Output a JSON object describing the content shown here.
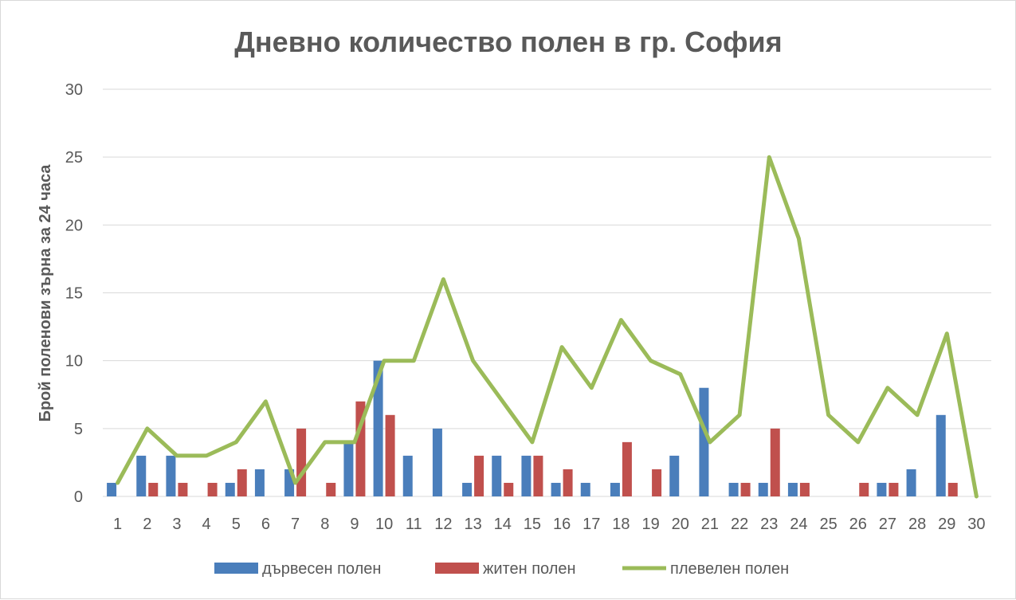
{
  "chart_data": {
    "type": "bar",
    "title": "Дневно количество полен в гр. София",
    "xlabel": "",
    "ylabel": "Брой поленови зърна за 24 часа",
    "ylim": [
      0,
      30
    ],
    "yticks": [
      "0",
      "5",
      "10",
      "15",
      "20",
      "25",
      "30"
    ],
    "grid": true,
    "legend_position": "bottom",
    "categories": [
      "1",
      "2",
      "3",
      "4",
      "5",
      "6",
      "7",
      "8",
      "9",
      "10",
      "11",
      "12",
      "13",
      "14",
      "15",
      "16",
      "17",
      "18",
      "19",
      "20",
      "21",
      "22",
      "23",
      "24",
      "25",
      "26",
      "27",
      "28",
      "29",
      "30"
    ],
    "series": [
      {
        "name": "дървесен полен",
        "type": "bar",
        "color": "#4a7ebb",
        "values": [
          1,
          3,
          3,
          0,
          1,
          2,
          2,
          0,
          4,
          10,
          3,
          5,
          1,
          3,
          3,
          1,
          1,
          1,
          0,
          3,
          8,
          1,
          1,
          1,
          0,
          0,
          1,
          2,
          6,
          0
        ]
      },
      {
        "name": "житен полен",
        "type": "bar",
        "color": "#c0504d",
        "values": [
          0,
          1,
          1,
          1,
          2,
          0,
          5,
          1,
          7,
          6,
          0,
          0,
          3,
          1,
          3,
          2,
          0,
          4,
          2,
          0,
          0,
          1,
          5,
          1,
          0,
          1,
          1,
          0,
          1,
          0
        ]
      },
      {
        "name": "плевелен полен",
        "type": "line",
        "color": "#9bbb59",
        "values": [
          1,
          5,
          3,
          3,
          4,
          7,
          1,
          4,
          4,
          10,
          10,
          16,
          10,
          7,
          4,
          11,
          8,
          13,
          10,
          9,
          4,
          6,
          25,
          19,
          6,
          4,
          8,
          6,
          12,
          0
        ]
      }
    ]
  },
  "colors": {
    "grid": "#d9d9d9",
    "text": "#595959",
    "border": "#d9d9d9"
  }
}
